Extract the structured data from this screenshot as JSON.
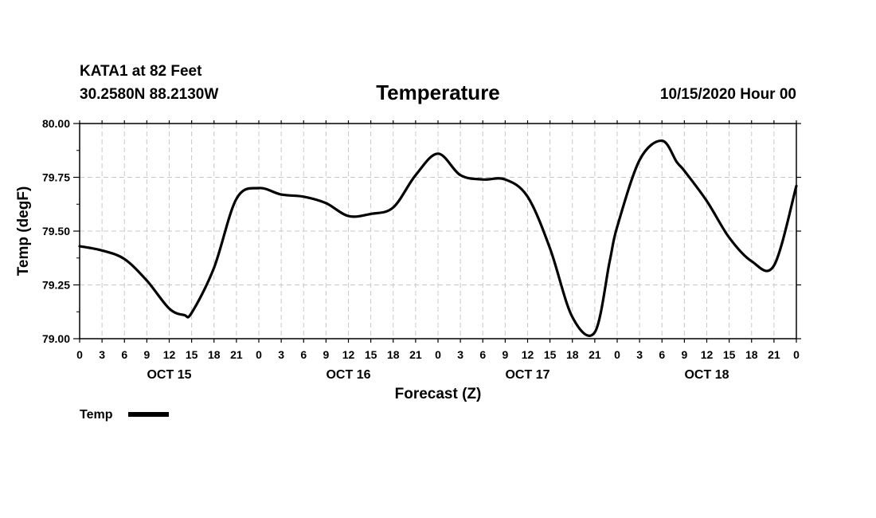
{
  "header": {
    "station": "KATA1 at 82 Feet",
    "coords": "30.2580N 88.2130W",
    "title": "Temperature",
    "run": "10/15/2020 Hour 00"
  },
  "colors": {
    "line": "#000000",
    "grid": "#c8c8c8",
    "frame": "#000000"
  },
  "chart_data": {
    "type": "line",
    "title": "Temperature",
    "xlabel": "Forecast (Z)",
    "ylabel": "Temp (degF)",
    "xlim": [
      0,
      96
    ],
    "ylim": [
      79.0,
      80.0
    ],
    "grid": true,
    "legend_position": "bottom-left",
    "x_tick_hours": [
      0,
      3,
      6,
      9,
      12,
      15,
      18,
      21,
      24,
      27,
      30,
      33,
      36,
      39,
      42,
      45,
      48,
      51,
      54,
      57,
      60,
      63,
      66,
      69,
      72,
      75,
      78,
      81,
      84,
      87,
      90,
      93,
      96
    ],
    "x_tick_labels": [
      "0",
      "3",
      "6",
      "9",
      "12",
      "15",
      "18",
      "21",
      "0",
      "3",
      "6",
      "9",
      "12",
      "15",
      "18",
      "21",
      "0",
      "3",
      "6",
      "9",
      "12",
      "15",
      "18",
      "21",
      "0",
      "3",
      "6",
      "9",
      "12",
      "15",
      "18",
      "21",
      "0"
    ],
    "y_ticks": [
      79.0,
      79.25,
      79.5,
      79.75,
      80.0
    ],
    "y_tick_labels": [
      "79.00",
      "79.25",
      "79.50",
      "79.75",
      "80.00"
    ],
    "day_labels": [
      {
        "hour": 12,
        "text": "OCT 15"
      },
      {
        "hour": 36,
        "text": "OCT 16"
      },
      {
        "hour": 60,
        "text": "OCT 17"
      },
      {
        "hour": 84,
        "text": "OCT 18"
      }
    ],
    "series": [
      {
        "name": "Temp",
        "x": [
          0,
          3,
          6,
          9,
          12,
          14,
          15,
          18,
          21,
          24,
          27,
          30,
          33,
          36,
          39,
          42,
          45,
          48,
          51,
          54,
          57,
          60,
          63,
          66,
          69,
          71,
          72,
          75,
          78,
          80,
          81,
          84,
          87,
          90,
          93,
          96
        ],
        "y": [
          79.43,
          79.41,
          79.37,
          79.27,
          79.14,
          79.11,
          79.12,
          79.33,
          79.65,
          79.7,
          79.67,
          79.66,
          79.63,
          79.57,
          79.58,
          79.61,
          79.76,
          79.86,
          79.76,
          79.74,
          79.74,
          79.66,
          79.42,
          79.1,
          79.03,
          79.36,
          79.52,
          79.83,
          79.92,
          79.82,
          79.78,
          79.64,
          79.47,
          79.36,
          79.34,
          79.71
        ]
      }
    ]
  }
}
